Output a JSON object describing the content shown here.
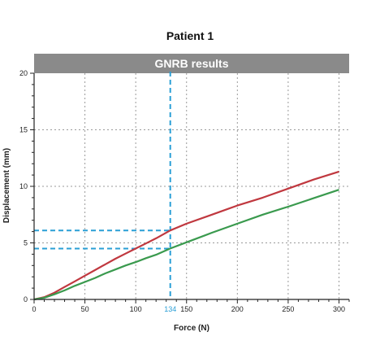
{
  "chart_data": {
    "type": "line",
    "title": "Patient 1",
    "subtitle": "GNRB results",
    "xlabel": "Force (N)",
    "ylabel": "Displacement (mm)",
    "xlim": [
      0,
      310
    ],
    "ylim": [
      0,
      20
    ],
    "x_ticks": [
      0,
      50,
      100,
      150,
      200,
      250,
      300
    ],
    "y_ticks": [
      0,
      5,
      10,
      15,
      20
    ],
    "highlight": {
      "x": 134,
      "x_label": "134",
      "y_values": [
        6.1,
        4.5
      ]
    },
    "grid": true,
    "series": [
      {
        "color": "#c0383f",
        "x": [
          0,
          10,
          20,
          30,
          40,
          50,
          60,
          70,
          80,
          90,
          100,
          110,
          120,
          134,
          150,
          175,
          200,
          225,
          250,
          275,
          300
        ],
        "y": [
          0,
          0.2,
          0.6,
          1.1,
          1.6,
          2.1,
          2.6,
          3.1,
          3.6,
          4.05,
          4.5,
          4.95,
          5.4,
          6.1,
          6.7,
          7.5,
          8.3,
          9.0,
          9.8,
          10.6,
          11.3
        ]
      },
      {
        "color": "#3a9a4e",
        "x": [
          0,
          10,
          20,
          30,
          40,
          50,
          60,
          70,
          80,
          90,
          100,
          110,
          120,
          134,
          150,
          175,
          200,
          225,
          250,
          275,
          300
        ],
        "y": [
          0,
          0.15,
          0.45,
          0.8,
          1.2,
          1.55,
          1.9,
          2.3,
          2.65,
          3.0,
          3.3,
          3.65,
          3.95,
          4.5,
          5.05,
          5.9,
          6.7,
          7.5,
          8.2,
          8.95,
          9.7
        ]
      }
    ]
  },
  "colors": {
    "banner": "#8a8a8a",
    "highlight": "#2a9fd6",
    "axis": "#222222",
    "grid": "#9a9a9a"
  }
}
